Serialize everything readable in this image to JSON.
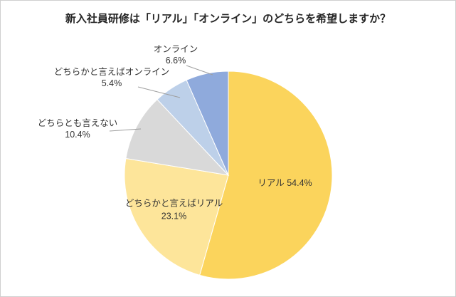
{
  "chart_data": {
    "type": "pie",
    "title": "新入社員研修は「リアル」「オンライン」のどちらを希望しますか？",
    "direction": "clockwise",
    "start_angle_deg": 0,
    "legend_position": "none",
    "background_color": "#FFFFFF",
    "label_text_color": "#333333",
    "leader_line_color": "#9E9E9E",
    "slices": [
      {
        "label": "リアル",
        "value": 54.4,
        "percent_label": "54.4%",
        "color": "#FBD45C"
      },
      {
        "label": "どちらかと言えばリアル",
        "value": 23.1,
        "percent_label": "23.1%",
        "color": "#FDE59A"
      },
      {
        "label": "どちらとも言えない",
        "value": 10.4,
        "percent_label": "10.4%",
        "color": "#D9D9D9"
      },
      {
        "label": "どちらかと言えばオンライン",
        "value": 5.4,
        "percent_label": "5.4%",
        "color": "#BDD0E9"
      },
      {
        "label": "オンライン",
        "value": 6.6,
        "percent_label": "6.6%",
        "color": "#8FAADC"
      }
    ]
  }
}
